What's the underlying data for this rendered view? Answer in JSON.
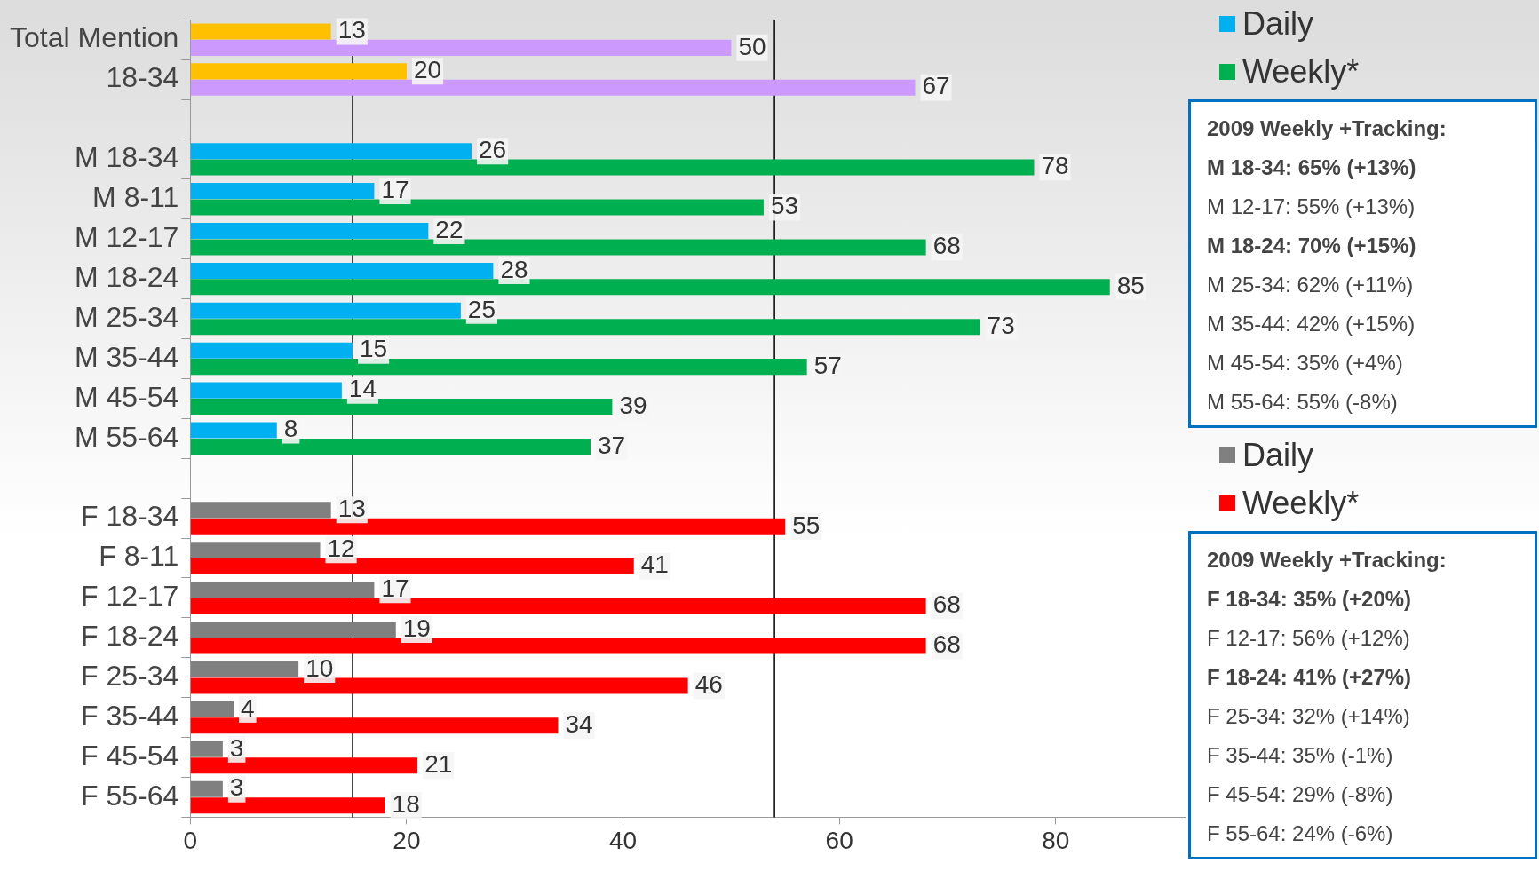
{
  "chart_data": {
    "type": "bar",
    "orientation": "horizontal",
    "categories": [
      "Total Mention",
      "18-34",
      null,
      "M 18-34",
      "M 8-11",
      "M 12-17",
      "M 18-24",
      "M 25-34",
      "M 35-44",
      "M 45-54",
      "M 55-64",
      null,
      "F 18-34",
      "F 8-11",
      "F 12-17",
      "F 18-24",
      "F 25-34",
      "F 35-44",
      "F 45-54",
      "F 55-64"
    ],
    "series": [
      {
        "color": "#ffc000",
        "values": [
          13,
          20,
          null,
          null,
          null,
          null,
          null,
          null,
          null,
          null,
          null,
          null,
          null,
          null,
          null,
          null,
          null,
          null,
          null,
          null
        ]
      },
      {
        "color": "#cc99ff",
        "values": [
          50,
          67,
          null,
          null,
          null,
          null,
          null,
          null,
          null,
          null,
          null,
          null,
          null,
          null,
          null,
          null,
          null,
          null,
          null,
          null
        ]
      },
      {
        "name": "Daily",
        "color": "#00b0f0",
        "values": [
          null,
          null,
          null,
          26,
          17,
          22,
          28,
          25,
          15,
          14,
          8,
          null,
          null,
          null,
          null,
          null,
          null,
          null,
          null,
          null
        ]
      },
      {
        "name": "Weekly*",
        "color": "#00b050",
        "values": [
          null,
          null,
          null,
          78,
          53,
          68,
          85,
          73,
          57,
          39,
          37,
          null,
          null,
          null,
          null,
          null,
          null,
          null,
          null,
          null
        ]
      },
      {
        "name": "Daily",
        "color": "#808080",
        "values": [
          null,
          null,
          null,
          null,
          null,
          null,
          null,
          null,
          null,
          null,
          null,
          null,
          13,
          12,
          17,
          19,
          10,
          4,
          3,
          3
        ]
      },
      {
        "name": "Weekly*",
        "color": "#ff0000",
        "values": [
          null,
          null,
          null,
          null,
          null,
          null,
          null,
          null,
          null,
          null,
          null,
          null,
          55,
          41,
          68,
          68,
          46,
          34,
          21,
          18
        ]
      }
    ],
    "xlim": [
      0,
      92
    ],
    "xticks": [
      0,
      20,
      40,
      60,
      80
    ],
    "grid": false,
    "legend": "right",
    "data_labels": true,
    "ref_lines": [
      {
        "axis": "x",
        "value": 15,
        "color": "#000000"
      },
      {
        "axis": "x",
        "value": 54,
        "color": "#000000"
      }
    ],
    "annotations": [
      "2009 Weekly +Tracking:",
      "M 18-34: 65% (+13%)",
      "M 12-17: 55% (+13%)",
      "M 18-24: 70% (+15%)",
      "M 25-34: 62% (+11%)",
      "M 35-44: 42% (+15%)",
      "M 45-54: 35% (+4%)",
      "M 55-64: 55% (-8%)",
      "2009 Weekly +Tracking:",
      "F 18-34: 35% (+20%)",
      "F 12-17: 56% (+12%)",
      "F 18-24: 41% (+27%)",
      "F 25-34: 32% (+14%)",
      "F 35-44: 35% (-1%)",
      "F 45-54: 29% (-8%)",
      "F 55-64: 24% (-6%)"
    ]
  }
}
